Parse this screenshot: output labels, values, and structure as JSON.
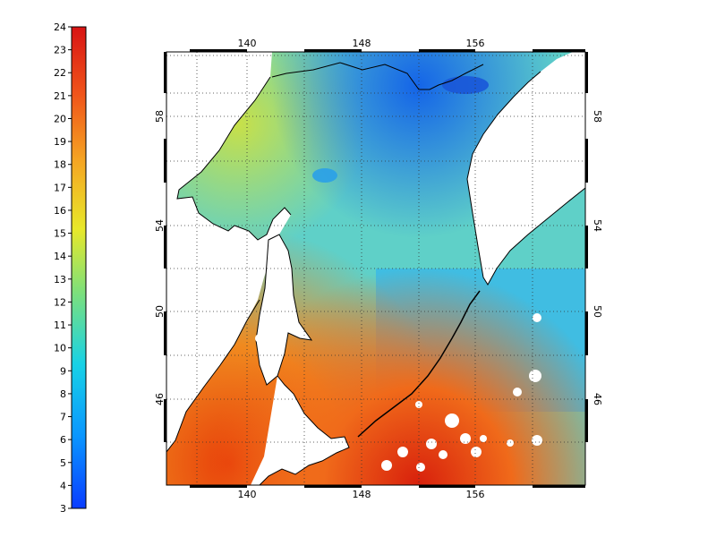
{
  "map": {
    "colorbar": {
      "min": 3,
      "max": 24,
      "ticks": [
        "3",
        "4",
        "5",
        "6",
        "7",
        "8",
        "9",
        "10",
        "11",
        "12",
        "13",
        "14",
        "15",
        "16",
        "17",
        "18",
        "19",
        "20",
        "21",
        "22",
        "23",
        "24"
      ]
    },
    "lon_ticks": [
      "140",
      "148",
      "156"
    ],
    "lat_ticks": [
      "46",
      "50",
      "54",
      "58"
    ],
    "colors": {
      "land": "#ffffff",
      "coast": "#000000",
      "warm": "#e8400a",
      "cool": "#1e88e5"
    }
  }
}
